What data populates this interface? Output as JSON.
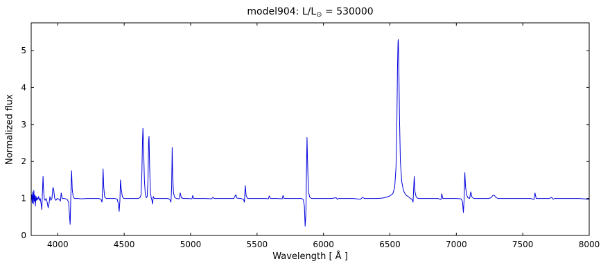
{
  "chart_data": {
    "type": "line",
    "title": "model904: L/L⊙ = 530000",
    "title_parts": {
      "prefix": "model904: L/L",
      "sub": "⊙",
      "suffix": " = 530000"
    },
    "xlabel": "Wavelength [ Å ]",
    "ylabel": "Normalized flux",
    "xlim": [
      3800,
      8000
    ],
    "ylim": [
      0,
      5.75
    ],
    "x_ticks": [
      4000,
      4500,
      5000,
      5500,
      6000,
      6500,
      7000,
      7500,
      8000
    ],
    "y_ticks": [
      0,
      1,
      2,
      3,
      4,
      5
    ],
    "grid": false,
    "legend": "none",
    "line_color": "#0000dd",
    "frame_color": "#000000",
    "series": [
      {
        "name": "spectrum",
        "points": [
          [
            3800,
            0.95
          ],
          [
            3804,
            1.1
          ],
          [
            3808,
            0.88
          ],
          [
            3812,
            1.18
          ],
          [
            3816,
            0.85
          ],
          [
            3820,
            1.22
          ],
          [
            3824,
            0.92
          ],
          [
            3828,
            1.1
          ],
          [
            3832,
            0.8
          ],
          [
            3836,
            1.06
          ],
          [
            3840,
            0.95
          ],
          [
            3845,
            1.02
          ],
          [
            3850,
            0.97
          ],
          [
            3856,
            1.05
          ],
          [
            3862,
            0.95
          ],
          [
            3868,
            1.0
          ],
          [
            3875,
            0.85
          ],
          [
            3880,
            0.7
          ],
          [
            3884,
            1.1
          ],
          [
            3889,
            1.6
          ],
          [
            3893,
            1.25
          ],
          [
            3898,
            1.0
          ],
          [
            3905,
            0.95
          ],
          [
            3912,
            1.0
          ],
          [
            3920,
            0.9
          ],
          [
            3928,
            0.75
          ],
          [
            3934,
            0.85
          ],
          [
            3941,
            1.05
          ],
          [
            3948,
            0.95
          ],
          [
            3956,
            1.0
          ],
          [
            3964,
            1.3
          ],
          [
            3970,
            1.22
          ],
          [
            3977,
            1.0
          ],
          [
            3986,
            0.95
          ],
          [
            3996,
            1.0
          ],
          [
            4010,
            0.98
          ],
          [
            4020,
            0.93
          ],
          [
            4026,
            1.15
          ],
          [
            4033,
            1.0
          ],
          [
            4050,
            1.0
          ],
          [
            4070,
            0.98
          ],
          [
            4082,
            0.9
          ],
          [
            4088,
            0.55
          ],
          [
            4093,
            0.3
          ],
          [
            4097,
            0.85
          ],
          [
            4101,
            1.45
          ],
          [
            4104,
            1.75
          ],
          [
            4109,
            1.25
          ],
          [
            4116,
            1.05
          ],
          [
            4126,
            1.0
          ],
          [
            4150,
            1.0
          ],
          [
            4180,
            0.99
          ],
          [
            4220,
            1.0
          ],
          [
            4270,
            1.0
          ],
          [
            4310,
            1.0
          ],
          [
            4326,
            0.97
          ],
          [
            4333,
            0.9
          ],
          [
            4337,
            1.25
          ],
          [
            4341,
            1.8
          ],
          [
            4346,
            1.3
          ],
          [
            4353,
            1.04
          ],
          [
            4365,
            1.0
          ],
          [
            4400,
            1.0
          ],
          [
            4430,
            1.0
          ],
          [
            4448,
            0.98
          ],
          [
            4456,
            0.85
          ],
          [
            4462,
            0.65
          ],
          [
            4468,
            0.95
          ],
          [
            4472,
            1.5
          ],
          [
            4477,
            1.28
          ],
          [
            4486,
            1.05
          ],
          [
            4497,
            1.0
          ],
          [
            4530,
            1.0
          ],
          [
            4570,
            1.0
          ],
          [
            4605,
            1.0
          ],
          [
            4618,
            1.02
          ],
          [
            4627,
            1.1
          ],
          [
            4633,
            1.7
          ],
          [
            4638,
            2.6
          ],
          [
            4641,
            2.9
          ],
          [
            4646,
            2.35
          ],
          [
            4652,
            1.5
          ],
          [
            4659,
            1.12
          ],
          [
            4666,
            1.02
          ],
          [
            4673,
            1.05
          ],
          [
            4679,
            1.5
          ],
          [
            4684,
            2.55
          ],
          [
            4687,
            2.68
          ],
          [
            4691,
            1.9
          ],
          [
            4697,
            1.2
          ],
          [
            4703,
            1.02
          ],
          [
            4709,
            0.95
          ],
          [
            4714,
            0.85
          ],
          [
            4719,
            1.05
          ],
          [
            4727,
            1.0
          ],
          [
            4760,
            1.0
          ],
          [
            4800,
            1.0
          ],
          [
            4832,
            1.0
          ],
          [
            4845,
            0.96
          ],
          [
            4852,
            0.9
          ],
          [
            4857,
            1.3
          ],
          [
            4861,
            2.38
          ],
          [
            4865,
            1.65
          ],
          [
            4871,
            1.15
          ],
          [
            4880,
            1.03
          ],
          [
            4892,
            1.0
          ],
          [
            4915,
            0.99
          ],
          [
            4922,
            1.15
          ],
          [
            4930,
            1.02
          ],
          [
            4945,
            1.0
          ],
          [
            4980,
            1.0
          ],
          [
            5010,
            0.99
          ],
          [
            5016,
            1.08
          ],
          [
            5023,
            1.0
          ],
          [
            5060,
            1.0
          ],
          [
            5110,
            1.0
          ],
          [
            5158,
            0.99
          ],
          [
            5168,
            1.03
          ],
          [
            5178,
            1.0
          ],
          [
            5230,
            1.0
          ],
          [
            5280,
            1.0
          ],
          [
            5325,
            1.0
          ],
          [
            5340,
            1.1
          ],
          [
            5349,
            1.01
          ],
          [
            5380,
            1.0
          ],
          [
            5398,
            0.97
          ],
          [
            5405,
            0.9
          ],
          [
            5411,
            1.35
          ],
          [
            5418,
            1.08
          ],
          [
            5428,
            1.0
          ],
          [
            5470,
            1.0
          ],
          [
            5520,
            1.0
          ],
          [
            5565,
            1.0
          ],
          [
            5585,
            0.99
          ],
          [
            5592,
            1.07
          ],
          [
            5601,
            1.0
          ],
          [
            5650,
            1.0
          ],
          [
            5689,
            0.99
          ],
          [
            5696,
            1.08
          ],
          [
            5704,
            1.0
          ],
          [
            5750,
            1.0
          ],
          [
            5800,
            1.0
          ],
          [
            5835,
            1.0
          ],
          [
            5848,
            0.97
          ],
          [
            5856,
            0.8
          ],
          [
            5862,
            0.25
          ],
          [
            5867,
            0.55
          ],
          [
            5871,
            1.4
          ],
          [
            5876,
            2.65
          ],
          [
            5881,
            1.85
          ],
          [
            5887,
            1.2
          ],
          [
            5896,
            1.04
          ],
          [
            5910,
            1.0
          ],
          [
            5960,
            1.0
          ],
          [
            6010,
            1.0
          ],
          [
            6060,
            1.0
          ],
          [
            6095,
            1.02
          ],
          [
            6104,
            0.98
          ],
          [
            6115,
            1.0
          ],
          [
            6170,
            1.0
          ],
          [
            6225,
            1.0
          ],
          [
            6278,
            0.98
          ],
          [
            6295,
            1.03
          ],
          [
            6308,
            1.0
          ],
          [
            6350,
            1.0
          ],
          [
            6400,
            1.0
          ],
          [
            6440,
            1.01
          ],
          [
            6470,
            1.03
          ],
          [
            6500,
            1.07
          ],
          [
            6522,
            1.13
          ],
          [
            6536,
            1.3
          ],
          [
            6546,
            1.85
          ],
          [
            6552,
            3.0
          ],
          [
            6557,
            4.5
          ],
          [
            6561,
            5.25
          ],
          [
            6563,
            5.3
          ],
          [
            6567,
            4.7
          ],
          [
            6572,
            3.2
          ],
          [
            6579,
            2.0
          ],
          [
            6589,
            1.45
          ],
          [
            6602,
            1.22
          ],
          [
            6618,
            1.1
          ],
          [
            6638,
            1.05
          ],
          [
            6655,
            1.0
          ],
          [
            6668,
            0.97
          ],
          [
            6674,
            0.9
          ],
          [
            6679,
            1.3
          ],
          [
            6683,
            1.6
          ],
          [
            6689,
            1.18
          ],
          [
            6698,
            1.04
          ],
          [
            6712,
            1.0
          ],
          [
            6760,
            1.0
          ],
          [
            6815,
            1.0
          ],
          [
            6862,
            1.0
          ],
          [
            6884,
            0.97
          ],
          [
            6890,
            1.13
          ],
          [
            6898,
            1.0
          ],
          [
            6950,
            1.0
          ],
          [
            7000,
            1.0
          ],
          [
            7035,
            0.99
          ],
          [
            7046,
            0.92
          ],
          [
            7053,
            0.62
          ],
          [
            7059,
            1.0
          ],
          [
            7064,
            1.7
          ],
          [
            7069,
            1.32
          ],
          [
            7077,
            1.1
          ],
          [
            7087,
            1.02
          ],
          [
            7100,
            1.0
          ],
          [
            7109,
            1.18
          ],
          [
            7117,
            1.04
          ],
          [
            7132,
            1.0
          ],
          [
            7185,
            1.0
          ],
          [
            7240,
            1.0
          ],
          [
            7262,
            1.02
          ],
          [
            7274,
            1.08
          ],
          [
            7284,
            1.09
          ],
          [
            7296,
            1.04
          ],
          [
            7312,
            1.0
          ],
          [
            7360,
            1.0
          ],
          [
            7410,
            1.0
          ],
          [
            7460,
            1.0
          ],
          [
            7510,
            1.0
          ],
          [
            7560,
            1.0
          ],
          [
            7584,
            0.97
          ],
          [
            7592,
            1.15
          ],
          [
            7601,
            1.0
          ],
          [
            7650,
            1.0
          ],
          [
            7700,
            1.0
          ],
          [
            7718,
            1.03
          ],
          [
            7728,
            0.98
          ],
          [
            7740,
            1.0
          ],
          [
            7800,
            1.0
          ],
          [
            7860,
            1.0
          ],
          [
            7920,
            1.0
          ],
          [
            7965,
            0.99
          ],
          [
            8000,
            0.97
          ]
        ]
      }
    ]
  }
}
